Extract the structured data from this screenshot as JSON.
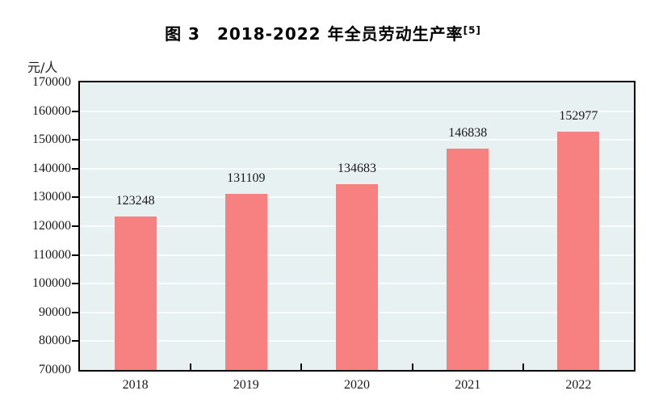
{
  "chart_data": {
    "type": "bar",
    "title": "图 3　2018-2022 年全员劳动生产率",
    "title_footnote": "[5]",
    "ylabel": "元/人",
    "categories": [
      "2018",
      "2019",
      "2020",
      "2021",
      "2022"
    ],
    "values": [
      123248,
      131109,
      134683,
      146838,
      152977
    ],
    "value_labels": [
      "123248",
      "131109",
      "134683",
      "146838",
      "152977"
    ],
    "ylim": [
      70000,
      170000
    ],
    "ytick_step": 10000,
    "yticks": [
      70000,
      80000,
      90000,
      100000,
      110000,
      120000,
      130000,
      140000,
      150000,
      160000,
      170000
    ],
    "grid": true,
    "legend": "none",
    "colors": {
      "bar": "#F78181",
      "plot_background": "#E8F1F2",
      "gridline": "#FAFDFD",
      "axis": "#000000",
      "text": "#1A1A1A",
      "page_background": "#FFFFFF"
    }
  }
}
